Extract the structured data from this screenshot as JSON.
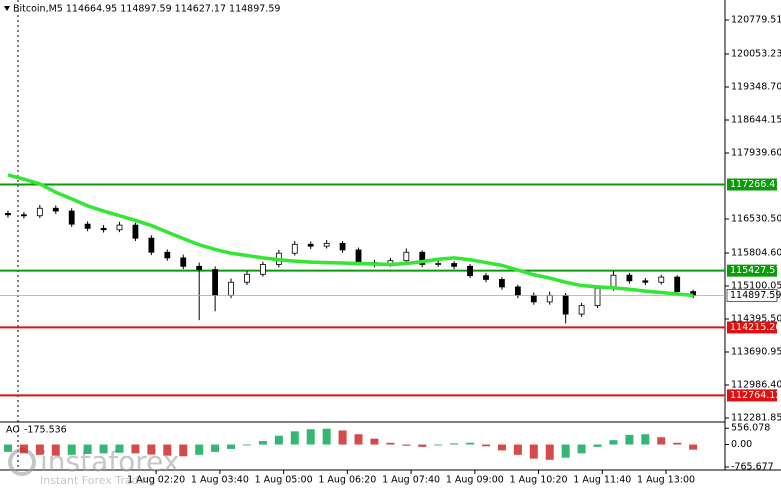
{
  "chart_data": {
    "type": "candlestick",
    "title": "Bitcoin,M5  114664.95 114897.59 114627.17 114897.59",
    "x": [
      0,
      1,
      2,
      3,
      4,
      5,
      6,
      7,
      8,
      9,
      10,
      11,
      12,
      13,
      14,
      15,
      16,
      17,
      18,
      19,
      20,
      21,
      22,
      23,
      24,
      25,
      26,
      27,
      28,
      29,
      30,
      31,
      32,
      33,
      34,
      35,
      36,
      37,
      38,
      39,
      40,
      41,
      42,
      43
    ],
    "open": [
      116650,
      116620,
      116600,
      116760,
      116700,
      116420,
      116330,
      116300,
      116400,
      116120,
      115820,
      115700,
      115520,
      115450,
      114900,
      115180,
      115350,
      115560,
      115800,
      115990,
      115950,
      116010,
      115870,
      115600,
      115560,
      115640,
      115820,
      115560,
      115580,
      115520,
      115320,
      115240,
      115080,
      114900,
      114760,
      114900,
      114500,
      114680,
      115050,
      115330,
      115210,
      115180,
      115290,
      114980
    ],
    "high": [
      116710,
      116680,
      116830,
      116820,
      116760,
      116480,
      116400,
      116470,
      116450,
      116180,
      115880,
      115770,
      115600,
      115520,
      115260,
      115420,
      115620,
      115870,
      116060,
      116050,
      116080,
      116060,
      115920,
      115660,
      115700,
      115900,
      115860,
      115640,
      115630,
      115570,
      115380,
      115290,
      115130,
      114960,
      114980,
      114950,
      114740,
      115110,
      115420,
      115380,
      115270,
      115340,
      115330,
      115020
    ],
    "low": [
      116560,
      116540,
      116550,
      116640,
      116360,
      116270,
      116240,
      116250,
      116060,
      115760,
      115640,
      115460,
      114370,
      114560,
      114840,
      115120,
      115300,
      115500,
      115750,
      115890,
      115900,
      115810,
      115540,
      115500,
      115510,
      115590,
      115500,
      115510,
      115460,
      115270,
      115180,
      115020,
      114840,
      114700,
      114700,
      114300,
      114440,
      114630,
      115000,
      115150,
      115120,
      115130,
      114920,
      114840
    ],
    "close": [
      116620,
      116600,
      116760,
      116700,
      116420,
      116330,
      116300,
      116400,
      116120,
      115820,
      115700,
      115520,
      115450,
      114900,
      115180,
      115350,
      115560,
      115800,
      115990,
      115950,
      116010,
      115870,
      115600,
      115560,
      115640,
      115820,
      115560,
      115580,
      115520,
      115320,
      115240,
      115080,
      114900,
      114760,
      114900,
      114500,
      114680,
      115050,
      115330,
      115210,
      115180,
      115290,
      114980,
      114897.59
    ],
    "up_color": "#ffffff",
    "down_color": "#000000",
    "moving_average": {
      "color": "#32e632",
      "values": [
        117470,
        117380,
        117280,
        117100,
        116960,
        116810,
        116700,
        116600,
        116500,
        116390,
        116250,
        116110,
        115980,
        115880,
        115800,
        115750,
        115700,
        115660,
        115630,
        115610,
        115600,
        115590,
        115580,
        115570,
        115560,
        115580,
        115620,
        115670,
        115700,
        115660,
        115600,
        115540,
        115440,
        115340,
        115270,
        115180,
        115110,
        115080,
        115060,
        115030,
        114990,
        114960,
        114930,
        114900
      ]
    },
    "xlim": [
      -0.5,
      45
    ],
    "xticks": [
      {
        "value": 9.3,
        "label": "1 Aug 02:20"
      },
      {
        "value": 13.3,
        "label": "1 Aug 03:40"
      },
      {
        "value": 17.3,
        "label": "1 Aug 05:00"
      },
      {
        "value": 21.3,
        "label": "1 Aug 06:20"
      },
      {
        "value": 25.3,
        "label": "1 Aug 07:40"
      },
      {
        "value": 29.3,
        "label": "1 Aug 09:00"
      },
      {
        "value": 33.3,
        "label": "1 Aug 10:20"
      },
      {
        "value": 37.3,
        "label": "1 Aug 11:40"
      },
      {
        "value": 41.3,
        "label": "1 Aug 13:00"
      }
    ],
    "ylim": [
      112196,
      121206
    ],
    "yticks": [
      120779.51,
      120053.23,
      {
        "value": 119348.7,
        "label": "119348.70"
      },
      118644.15,
      {
        "value": 117939.6,
        "label": "117939.60"
      },
      {
        "value": 116530.5,
        "label": "116530.50"
      },
      {
        "value": 115804.6,
        "label": "115804.60"
      },
      115100.05,
      {
        "value": 114395.5,
        "label": "114395.50"
      },
      113690.95,
      {
        "value": 112986.4,
        "label": "112986.40"
      },
      112281.85
    ],
    "levels": [
      {
        "value": 117266.41,
        "color": "#0a9a0a"
      },
      {
        "value": 115427.57,
        "color": "#0a9a0a"
      },
      {
        "value": {
          "value": 114215.2,
          "label": "114215.20"
        },
        "color": "#e01010"
      },
      {
        "value": 112764.12,
        "color": "#e01010"
      }
    ],
    "current_price": 114897.59,
    "indicator": {
      "name": "AO",
      "values": [
        -250,
        -300,
        -350,
        -380,
        -350,
        -320,
        -300,
        -280,
        -300,
        -340,
        -380,
        -400,
        -350,
        -250,
        -150,
        -30,
        120,
        300,
        450,
        520,
        540,
        480,
        350,
        200,
        60,
        -40,
        -80,
        -30,
        40,
        60,
        -60,
        -200,
        -350,
        -480,
        -520,
        -450,
        -300,
        -80,
        150,
        330,
        350,
        250,
        60,
        -175.536
      ],
      "up_color": "#00a550",
      "down_color": "#c81e1e",
      "ylim": [
        -800,
        700
      ],
      "yticks": [
        556.078,
        {
          "value": 0,
          "label": "0.00"
        },
        -765.677
      ]
    },
    "watermark": {
      "brand": "instaforex",
      "tagline": "Instant Forex Trading"
    }
  }
}
